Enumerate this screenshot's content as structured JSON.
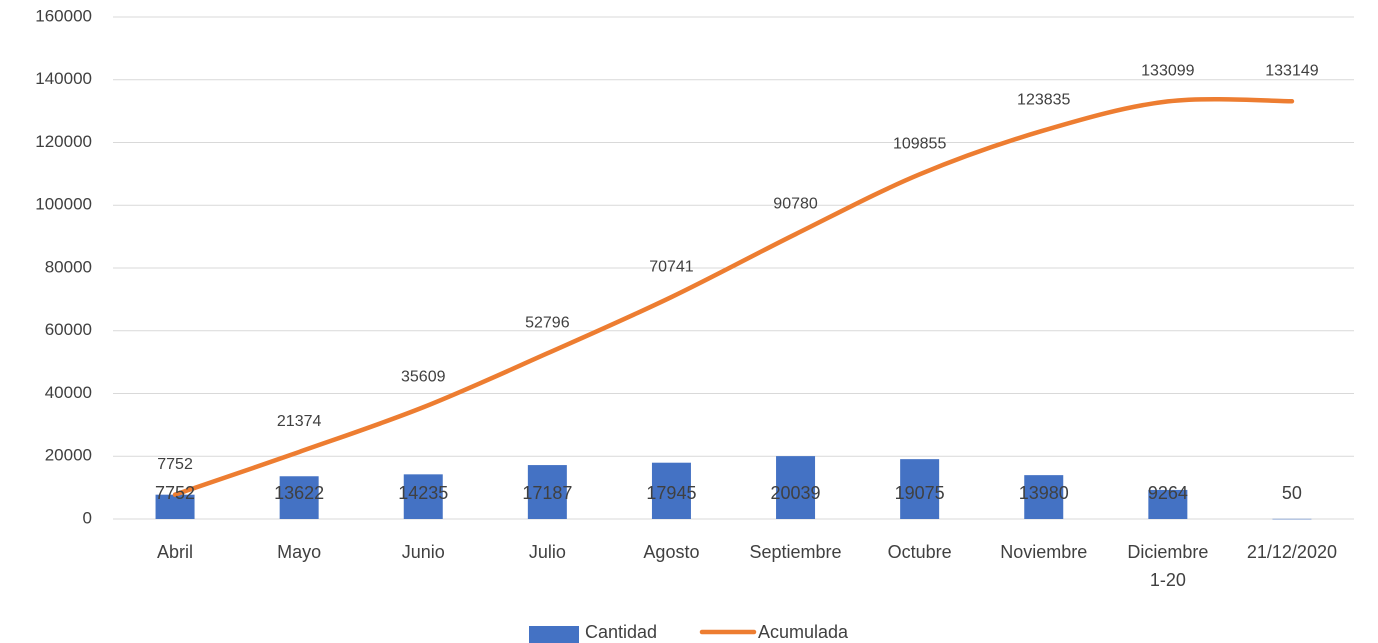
{
  "chart_data": {
    "type": "bar",
    "categories": [
      [
        "Abril"
      ],
      [
        "Mayo"
      ],
      [
        "Junio"
      ],
      [
        "Julio"
      ],
      [
        "Agosto"
      ],
      [
        "Septiembre"
      ],
      [
        "Octubre"
      ],
      [
        "Noviembre"
      ],
      [
        "Diciembre",
        "1-20"
      ],
      [
        "21/12/2020"
      ]
    ],
    "series": [
      {
        "name": "Cantidad",
        "type": "bar",
        "color": "#4472c4",
        "values": [
          7752,
          13622,
          14235,
          17187,
          17945,
          20039,
          19075,
          13980,
          9264,
          50
        ]
      },
      {
        "name": "Acumulada",
        "type": "line",
        "color": "#ed7d31",
        "values": [
          7752,
          21374,
          35609,
          52796,
          70741,
          90780,
          109855,
          123835,
          133099,
          133149
        ]
      }
    ],
    "yticks": [
      0,
      20000,
      40000,
      60000,
      80000,
      100000,
      120000,
      140000,
      160000
    ],
    "ylim": [
      0,
      160000
    ],
    "grid": true,
    "legend": "bottom"
  }
}
